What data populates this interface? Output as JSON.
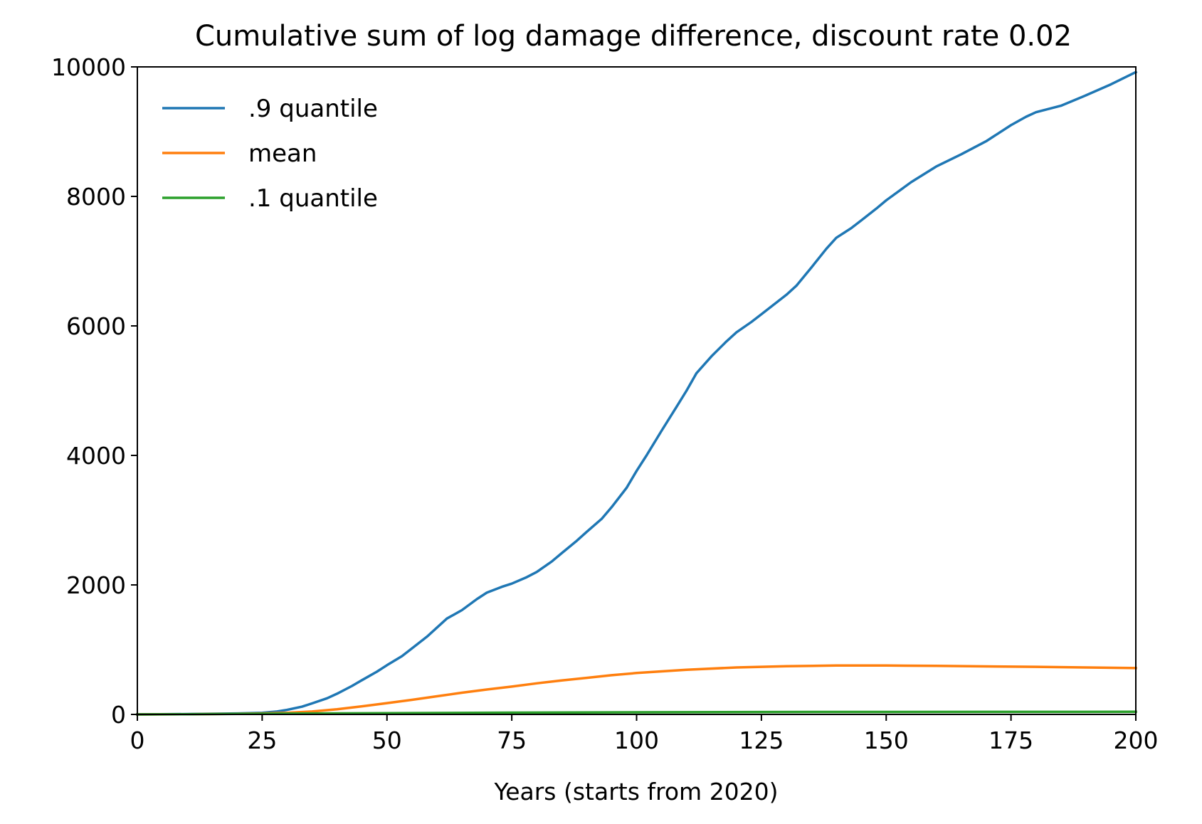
{
  "chart_data": {
    "type": "line",
    "title": "Cumulative sum of log damage difference, discount rate 0.02",
    "xlabel": "Years (starts from 2020)",
    "ylabel": "",
    "xlim": [
      0,
      200
    ],
    "ylim": [
      0,
      10000
    ],
    "xticks": [
      0,
      25,
      50,
      75,
      100,
      125,
      150,
      175,
      200
    ],
    "yticks": [
      0,
      2000,
      4000,
      6000,
      8000,
      10000
    ],
    "grid": false,
    "legend_position": "top-left",
    "series": [
      {
        "name": ".9 quantile",
        "color": "#1f77b4",
        "x": [
          0,
          10,
          20,
          25,
          28,
          30,
          33,
          35,
          38,
          40,
          43,
          45,
          48,
          50,
          53,
          55,
          58,
          60,
          62,
          65,
          68,
          70,
          73,
          75,
          78,
          80,
          83,
          85,
          88,
          90,
          93,
          95,
          98,
          100,
          102,
          105,
          108,
          110,
          112,
          115,
          118,
          120,
          123,
          125,
          128,
          130,
          132,
          135,
          138,
          140,
          143,
          145,
          148,
          150,
          155,
          160,
          165,
          170,
          175,
          178,
          180,
          185,
          190,
          195,
          200
        ],
        "values": [
          0,
          5,
          15,
          25,
          45,
          70,
          120,
          170,
          250,
          320,
          440,
          530,
          660,
          760,
          900,
          1020,
          1200,
          1340,
          1480,
          1610,
          1780,
          1880,
          1970,
          2020,
          2120,
          2200,
          2360,
          2490,
          2680,
          2820,
          3020,
          3200,
          3500,
          3760,
          4000,
          4380,
          4750,
          5000,
          5270,
          5530,
          5760,
          5900,
          6060,
          6180,
          6360,
          6480,
          6620,
          6900,
          7190,
          7360,
          7510,
          7630,
          7810,
          7940,
          8220,
          8460,
          8650,
          8850,
          9100,
          9230,
          9300,
          9400,
          9560,
          9730,
          9920
        ]
      },
      {
        "name": "mean",
        "color": "#ff7f0e",
        "x": [
          0,
          10,
          20,
          25,
          30,
          35,
          40,
          45,
          50,
          55,
          60,
          65,
          70,
          75,
          80,
          85,
          90,
          95,
          100,
          110,
          120,
          130,
          140,
          150,
          160,
          170,
          180,
          190,
          200
        ],
        "values": [
          0,
          3,
          10,
          15,
          25,
          45,
          80,
          125,
          175,
          225,
          280,
          335,
          385,
          430,
          480,
          525,
          565,
          605,
          640,
          690,
          725,
          745,
          755,
          755,
          750,
          742,
          735,
          725,
          715
        ]
      },
      {
        "name": ".1 quantile",
        "color": "#2ca02c",
        "x": [
          0,
          10,
          20,
          30,
          40,
          50,
          75,
          100,
          125,
          150,
          175,
          200
        ],
        "values": [
          0,
          3,
          8,
          12,
          16,
          20,
          27,
          33,
          37,
          39,
          40,
          41
        ]
      }
    ]
  }
}
